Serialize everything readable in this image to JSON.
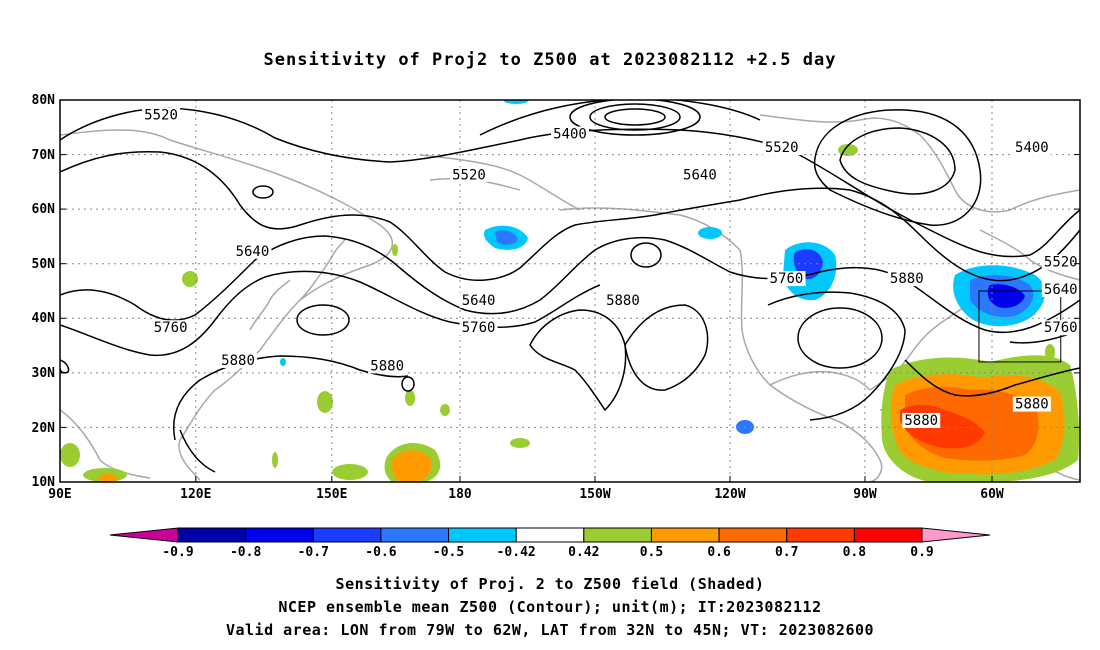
{
  "title": "Sensitivity of Proj2 to Z500 at 2023082112 +2.5 day",
  "map": {
    "lat_labels": [
      "80N",
      "70N",
      "60N",
      "50N",
      "40N",
      "30N",
      "20N",
      "10N"
    ],
    "lon_labels": [
      "90E",
      "120E",
      "150E",
      "180",
      "150W",
      "120W",
      "90W",
      "60W"
    ],
    "contour_labels": [
      {
        "text": "5520",
        "lon": 111,
        "lat": 77
      },
      {
        "text": "5400",
        "lon": 196,
        "lat": 73.5
      },
      {
        "text": "5520",
        "lon": 240,
        "lat": 71
      },
      {
        "text": "5400",
        "lon": 292,
        "lat": 71
      },
      {
        "text": "5520",
        "lon": 175,
        "lat": 66
      },
      {
        "text": "5640",
        "lon": 223,
        "lat": 66
      },
      {
        "text": "5640",
        "lon": 130,
        "lat": 52
      },
      {
        "text": "5640",
        "lon": 177,
        "lat": 43
      },
      {
        "text": "5760",
        "lon": 177,
        "lat": 38
      },
      {
        "text": "5880",
        "lon": 207,
        "lat": 43
      },
      {
        "text": "5760",
        "lon": 241,
        "lat": 47
      },
      {
        "text": "5880",
        "lon": 266,
        "lat": 47
      },
      {
        "text": "5520",
        "lon": 298,
        "lat": 50
      },
      {
        "text": "5640",
        "lon": 298,
        "lat": 45
      },
      {
        "text": "5760",
        "lon": 298,
        "lat": 38
      },
      {
        "text": "5760",
        "lon": 113,
        "lat": 38
      },
      {
        "text": "5880",
        "lon": 127,
        "lat": 32
      },
      {
        "text": "5880",
        "lon": 158,
        "lat": 31
      },
      {
        "text": "5880",
        "lon": 292,
        "lat": 24
      },
      {
        "text": "5880",
        "lon": 269,
        "lat": 21
      }
    ],
    "valid_box": {
      "lon_from": -79,
      "lon_to": -62,
      "lat_from": 32,
      "lat_to": 45
    }
  },
  "colorbar": {
    "labels": [
      "-0.9",
      "-0.8",
      "-0.7",
      "-0.6",
      "-0.5",
      "-0.42",
      "0.42",
      "0.5",
      "0.6",
      "0.7",
      "0.8",
      "0.9"
    ],
    "colors": [
      "#0000aa",
      "#0000ee",
      "#1a3cff",
      "#2b78ff",
      "#00c8ff",
      "#ffffff",
      "#9acd32",
      "#ff9a00",
      "#ff6a00",
      "#ff3a00",
      "#ff0000"
    ],
    "low_arrow_color": "#cc0099",
    "high_arrow_color": "#ff99cc"
  },
  "captions": {
    "line1": "Sensitivity of Proj. 2 to Z500 field (Shaded)",
    "line2": "NCEP ensemble mean Z500 (Contour); unit(m); IT:2023082112",
    "line3": "Valid area: LON from 79W to 62W, LAT from 32N to 45N; VT: 2023082600"
  }
}
